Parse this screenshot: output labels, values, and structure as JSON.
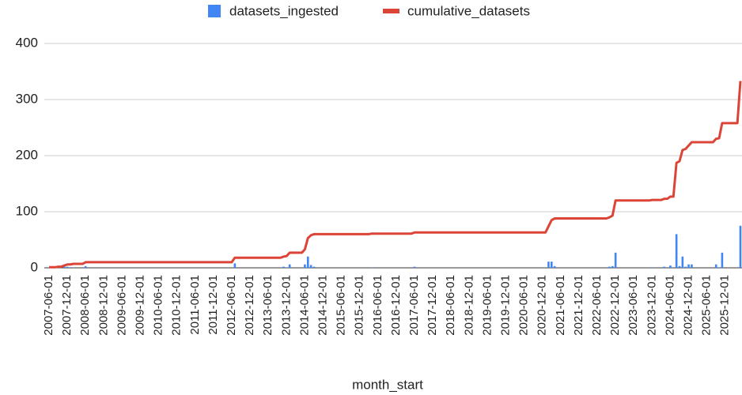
{
  "chart_data": {
    "type": "bar_line",
    "x_label": "month_start",
    "categories": [
      "2007-06-01",
      null,
      null,
      null,
      null,
      null,
      "2007-12-01",
      null,
      null,
      null,
      null,
      null,
      "2008-06-01",
      null,
      null,
      null,
      null,
      null,
      "2008-12-01",
      null,
      null,
      null,
      null,
      null,
      "2009-06-01",
      null,
      null,
      null,
      null,
      null,
      "2009-12-01",
      null,
      null,
      null,
      null,
      null,
      "2010-06-01",
      null,
      null,
      null,
      null,
      null,
      "2010-12-01",
      null,
      null,
      null,
      null,
      null,
      "2011-06-01",
      null,
      null,
      null,
      null,
      null,
      "2011-12-01",
      null,
      null,
      null,
      null,
      null,
      "2012-06-01",
      null,
      null,
      null,
      null,
      null,
      "2012-12-01",
      null,
      null,
      null,
      null,
      null,
      "2013-06-01",
      null,
      null,
      null,
      null,
      null,
      "2013-12-01",
      null,
      null,
      null,
      null,
      null,
      "2014-06-01",
      null,
      null,
      null,
      null,
      null,
      "2014-12-01",
      null,
      null,
      null,
      null,
      null,
      "2015-06-01",
      null,
      null,
      null,
      null,
      null,
      "2015-12-01",
      null,
      null,
      null,
      null,
      null,
      "2016-06-01",
      null,
      null,
      null,
      null,
      null,
      "2016-12-01",
      null,
      null,
      null,
      null,
      null,
      "2017-06-01",
      null,
      null,
      null,
      null,
      null,
      "2017-12-01",
      null,
      null,
      null,
      null,
      null,
      "2018-06-01",
      null,
      null,
      null,
      null,
      null,
      "2018-12-01",
      null,
      null,
      null,
      null,
      null,
      "2019-06-01",
      null,
      null,
      null,
      null,
      null,
      "2019-12-01",
      null,
      null,
      null,
      null,
      null,
      "2020-06-01",
      null,
      null,
      null,
      null,
      null,
      "2020-12-01",
      null,
      null,
      null,
      null,
      null,
      "2021-06-01",
      null,
      null,
      null,
      null,
      null,
      "2021-12-01",
      null,
      null,
      null,
      null,
      null,
      "2022-06-01",
      null,
      null,
      null,
      null,
      null,
      "2022-12-01",
      null,
      null,
      null,
      null,
      null,
      "2023-06-01",
      null,
      null,
      null,
      null,
      null,
      "2023-12-01",
      null,
      null,
      null,
      null,
      null,
      "2024-06-01",
      null,
      null,
      null,
      null,
      null,
      "2024-12-01",
      null,
      null,
      null,
      null,
      null,
      "2025-06-01",
      null,
      null,
      null,
      null,
      null,
      "2025-12-01",
      null,
      null,
      null,
      null,
      null
    ],
    "series": [
      {
        "name": "datasets_ingested",
        "type": "bar",
        "color": "#4285f4",
        "values": [
          1,
          0,
          0,
          1,
          0,
          2,
          2,
          0,
          1,
          0,
          0,
          0,
          3,
          0,
          0,
          0,
          0,
          0,
          0,
          0,
          0,
          0,
          0,
          0,
          0,
          0,
          0,
          0,
          0,
          0,
          0,
          0,
          0,
          0,
          0,
          0,
          0,
          0,
          0,
          0,
          0,
          0,
          0,
          0,
          0,
          0,
          0,
          0,
          0,
          0,
          0,
          0,
          0,
          0,
          0,
          0,
          0,
          0,
          0,
          0,
          0,
          8,
          0,
          0,
          0,
          0,
          0,
          0,
          0,
          0,
          0,
          0,
          0,
          0,
          0,
          0,
          0,
          2,
          1,
          6,
          0,
          0,
          0,
          0,
          6,
          20,
          5,
          2,
          0,
          0,
          0,
          0,
          0,
          0,
          0,
          0,
          0,
          0,
          0,
          0,
          0,
          0,
          0,
          0,
          0,
          0,
          1,
          0,
          0,
          0,
          0,
          0,
          0,
          0,
          0,
          0,
          0,
          0,
          0,
          0,
          2,
          0,
          0,
          0,
          0,
          0,
          0,
          0,
          0,
          0,
          0,
          0,
          0,
          0,
          0,
          0,
          0,
          0,
          0,
          0,
          0,
          0,
          0,
          0,
          0,
          0,
          0,
          0,
          0,
          0,
          0,
          0,
          0,
          0,
          0,
          0,
          0,
          0,
          0,
          0,
          0,
          0,
          0,
          0,
          11,
          11,
          3,
          0,
          0,
          0,
          0,
          0,
          0,
          0,
          0,
          0,
          0,
          0,
          0,
          0,
          0,
          0,
          0,
          0,
          2,
          3,
          27,
          0,
          0,
          0,
          0,
          0,
          0,
          0,
          0,
          0,
          0,
          0,
          1,
          0,
          0,
          0,
          2,
          0,
          4,
          0,
          60,
          3,
          20,
          2,
          6,
          6,
          0,
          0,
          0,
          0,
          0,
          0,
          0,
          6,
          1,
          27,
          0,
          0,
          0,
          0,
          0,
          75
        ]
      },
      {
        "name": "cumulative_datasets",
        "type": "line",
        "color": "#db4437",
        "values": [
          1,
          1,
          1,
          2,
          2,
          4,
          6,
          6,
          7,
          7,
          7,
          7,
          10,
          10,
          10,
          10,
          10,
          10,
          10,
          10,
          10,
          10,
          10,
          10,
          10,
          10,
          10,
          10,
          10,
          10,
          10,
          10,
          10,
          10,
          10,
          10,
          10,
          10,
          10,
          10,
          10,
          10,
          10,
          10,
          10,
          10,
          10,
          10,
          10,
          10,
          10,
          10,
          10,
          10,
          10,
          10,
          10,
          10,
          10,
          10,
          10,
          18,
          18,
          18,
          18,
          18,
          18,
          18,
          18,
          18,
          18,
          18,
          18,
          18,
          18,
          18,
          18,
          20,
          21,
          27,
          27,
          27,
          27,
          27,
          33,
          53,
          58,
          60,
          60,
          60,
          60,
          60,
          60,
          60,
          60,
          60,
          60,
          60,
          60,
          60,
          60,
          60,
          60,
          60,
          60,
          60,
          61,
          61,
          61,
          61,
          61,
          61,
          61,
          61,
          61,
          61,
          61,
          61,
          61,
          61,
          63,
          63,
          63,
          63,
          63,
          63,
          63,
          63,
          63,
          63,
          63,
          63,
          63,
          63,
          63,
          63,
          63,
          63,
          63,
          63,
          63,
          63,
          63,
          63,
          63,
          63,
          63,
          63,
          63,
          63,
          63,
          63,
          63,
          63,
          63,
          63,
          63,
          63,
          63,
          63,
          63,
          63,
          63,
          63,
          74,
          85,
          88,
          88,
          88,
          88,
          88,
          88,
          88,
          88,
          88,
          88,
          88,
          88,
          88,
          88,
          88,
          88,
          88,
          88,
          90,
          93,
          120,
          120,
          120,
          120,
          120,
          120,
          120,
          120,
          120,
          120,
          120,
          120,
          121,
          121,
          121,
          121,
          123,
          123,
          127,
          127,
          187,
          190,
          210,
          212,
          218,
          224,
          224,
          224,
          224,
          224,
          224,
          224,
          224,
          230,
          231,
          258,
          258,
          258,
          258,
          258,
          258,
          333
        ]
      }
    ],
    "ylim": [
      0,
      400
    ],
    "yticks": [
      0,
      100,
      200,
      300,
      400
    ],
    "grid": true,
    "legend": "top"
  }
}
